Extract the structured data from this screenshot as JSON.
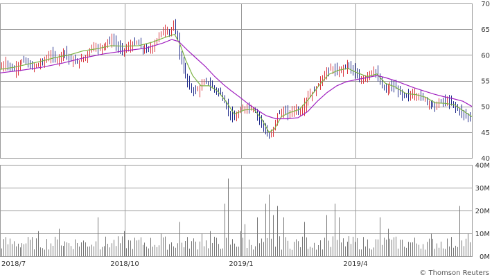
{
  "credit": "© Thomson Reuters",
  "colors": {
    "up": "#d9363e",
    "down": "#1f2a8a",
    "ma_short": "#7cb342",
    "ma_long": "#a020c0",
    "volume": "#777777",
    "grid": "#9a9a9a"
  },
  "chart_data": {
    "type": "line",
    "subtype": "candlestick-with-volume",
    "price": {
      "yticks": [
        "70",
        "65",
        "60",
        "55",
        "50",
        "45",
        "40"
      ],
      "ylim": [
        40,
        70
      ],
      "grid": true,
      "close_path": [
        [
          0,
          57.5
        ],
        [
          8,
          58.5
        ],
        [
          18,
          57
        ],
        [
          26,
          58
        ],
        [
          34,
          59
        ],
        [
          45,
          57.5
        ],
        [
          60,
          58.5
        ],
        [
          72,
          60
        ],
        [
          82,
          59
        ],
        [
          92,
          61
        ],
        [
          100,
          59
        ],
        [
          112,
          58.5
        ],
        [
          125,
          60
        ],
        [
          133,
          62
        ],
        [
          140,
          61
        ],
        [
          150,
          62
        ],
        [
          162,
          63
        ],
        [
          172,
          61
        ],
        [
          180,
          61
        ],
        [
          190,
          62
        ],
        [
          198,
          62.5
        ],
        [
          205,
          61
        ],
        [
          212,
          61
        ],
        [
          220,
          61.5
        ],
        [
          228,
          63.5
        ],
        [
          236,
          65
        ],
        [
          244,
          64.5
        ],
        [
          250,
          65.5
        ],
        [
          255,
          64
        ],
        [
          259,
          60
        ],
        [
          265,
          57
        ],
        [
          272,
          54
        ],
        [
          280,
          53
        ],
        [
          288,
          53.5
        ],
        [
          296,
          55
        ],
        [
          304,
          54
        ],
        [
          312,
          53
        ],
        [
          318,
          52.5
        ],
        [
          325,
          50.5
        ],
        [
          332,
          48.5
        ],
        [
          338,
          47.5
        ],
        [
          346,
          49
        ],
        [
          356,
          50
        ],
        [
          366,
          49.5
        ],
        [
          374,
          47.5
        ],
        [
          380,
          46
        ],
        [
          385,
          44.5
        ],
        [
          390,
          44
        ],
        [
          395,
          46
        ],
        [
          400,
          48.5
        ],
        [
          408,
          49
        ],
        [
          416,
          48.5
        ],
        [
          424,
          49.5
        ],
        [
          434,
          49
        ],
        [
          444,
          52
        ],
        [
          454,
          53
        ],
        [
          462,
          55
        ],
        [
          470,
          56.5
        ],
        [
          478,
          57.5
        ],
        [
          486,
          56.5
        ],
        [
          494,
          57.5
        ],
        [
          502,
          58
        ],
        [
          510,
          57
        ],
        [
          518,
          55
        ],
        [
          526,
          55.5
        ],
        [
          532,
          56.5
        ],
        [
          540,
          57
        ],
        [
          548,
          54.5
        ],
        [
          556,
          53
        ],
        [
          564,
          54
        ],
        [
          572,
          53.5
        ],
        [
          580,
          52
        ],
        [
          588,
          52
        ],
        [
          596,
          52.5
        ],
        [
          604,
          52
        ],
        [
          612,
          51.5
        ],
        [
          620,
          50.5
        ],
        [
          628,
          50
        ],
        [
          636,
          51
        ],
        [
          644,
          51
        ],
        [
          652,
          50.5
        ],
        [
          660,
          49.5
        ],
        [
          668,
          48.5
        ],
        [
          676,
          48
        ],
        [
          681,
          47.5
        ]
      ],
      "ma_short_path": [
        [
          0,
          57.2
        ],
        [
          20,
          57.6
        ],
        [
          40,
          58.2
        ],
        [
          60,
          58.8
        ],
        [
          80,
          59.5
        ],
        [
          100,
          60
        ],
        [
          120,
          60.8
        ],
        [
          140,
          61.2
        ],
        [
          160,
          61.8
        ],
        [
          180,
          61.7
        ],
        [
          200,
          61.8
        ],
        [
          220,
          62.5
        ],
        [
          240,
          63.5
        ],
        [
          252,
          64
        ],
        [
          260,
          62
        ],
        [
          268,
          59
        ],
        [
          278,
          56
        ],
        [
          290,
          54
        ],
        [
          302,
          54
        ],
        [
          314,
          53
        ],
        [
          326,
          51
        ],
        [
          338,
          48.5
        ],
        [
          352,
          49.3
        ],
        [
          366,
          49.5
        ],
        [
          378,
          47.5
        ],
        [
          388,
          45
        ],
        [
          396,
          45.6
        ],
        [
          406,
          48
        ],
        [
          418,
          48.8
        ],
        [
          432,
          49.4
        ],
        [
          446,
          51.5
        ],
        [
          460,
          54
        ],
        [
          474,
          56.2
        ],
        [
          488,
          57
        ],
        [
          502,
          57.4
        ],
        [
          516,
          56.5
        ],
        [
          530,
          55.8
        ],
        [
          544,
          56.3
        ],
        [
          556,
          54.5
        ],
        [
          570,
          53.8
        ],
        [
          586,
          52.5
        ],
        [
          600,
          52.3
        ],
        [
          614,
          51.8
        ],
        [
          628,
          50.7
        ],
        [
          642,
          50.6
        ],
        [
          656,
          50.3
        ],
        [
          670,
          49
        ],
        [
          681,
          48
        ]
      ],
      "ma_long_path": [
        [
          0,
          56.5
        ],
        [
          30,
          57
        ],
        [
          60,
          57.6
        ],
        [
          90,
          58.4
        ],
        [
          120,
          59.4
        ],
        [
          150,
          60.2
        ],
        [
          180,
          60.8
        ],
        [
          210,
          61.3
        ],
        [
          235,
          62.3
        ],
        [
          248,
          63
        ],
        [
          258,
          62.6
        ],
        [
          270,
          61
        ],
        [
          282,
          59.5
        ],
        [
          296,
          57.8
        ],
        [
          310,
          55.8
        ],
        [
          322,
          54.3
        ],
        [
          334,
          53
        ],
        [
          346,
          51.8
        ],
        [
          358,
          50.5
        ],
        [
          370,
          49.4
        ],
        [
          384,
          48.2
        ],
        [
          398,
          47.6
        ],
        [
          414,
          47.6
        ],
        [
          430,
          47.8
        ],
        [
          444,
          49
        ],
        [
          458,
          51
        ],
        [
          472,
          52.7
        ],
        [
          486,
          54
        ],
        [
          500,
          54.8
        ],
        [
          514,
          55.2
        ],
        [
          530,
          55.6
        ],
        [
          544,
          56
        ],
        [
          556,
          55.6
        ],
        [
          570,
          55
        ],
        [
          584,
          54.3
        ],
        [
          598,
          53.6
        ],
        [
          612,
          53
        ],
        [
          626,
          52.4
        ],
        [
          640,
          51.9
        ],
        [
          654,
          51.5
        ],
        [
          668,
          51
        ],
        [
          681,
          50
        ]
      ]
    },
    "volume": {
      "yticks": [
        "40M",
        "30M",
        "20M",
        "10M",
        "0M"
      ],
      "ylim": [
        0,
        40
      ],
      "unit": "M",
      "grid": true,
      "base_level": 8,
      "spikes": [
        [
          56,
          11
        ],
        [
          85,
          12
        ],
        [
          142,
          17
        ],
        [
          178,
          11
        ],
        [
          232,
          10
        ],
        [
          258,
          15
        ],
        [
          292,
          10
        ],
        [
          304,
          11
        ],
        [
          325,
          23
        ],
        [
          330,
          34
        ],
        [
          346,
          11
        ],
        [
          354,
          14
        ],
        [
          372,
          17
        ],
        [
          382,
          23
        ],
        [
          388,
          27
        ],
        [
          394,
          18
        ],
        [
          400,
          22
        ],
        [
          408,
          17
        ],
        [
          438,
          15
        ],
        [
          470,
          18
        ],
        [
          482,
          23
        ],
        [
          490,
          17
        ],
        [
          548,
          17
        ],
        [
          560,
          12
        ],
        [
          622,
          10
        ],
        [
          664,
          22
        ],
        [
          676,
          10
        ]
      ]
    },
    "x_axis": {
      "labels": [
        "2018/7",
        "2018/10",
        "2019/1",
        "2019/4"
      ]
    }
  }
}
